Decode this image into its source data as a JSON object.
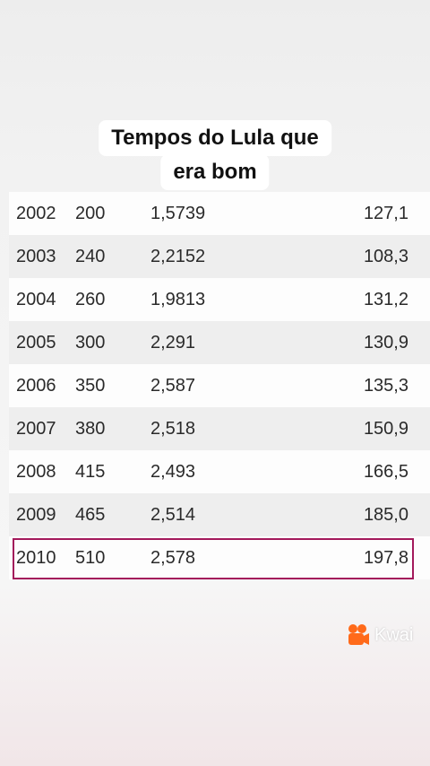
{
  "caption": {
    "lines": [
      "Tempos do Lula que",
      "era bom"
    ]
  },
  "table": {
    "rows": [
      [
        "2002",
        "200",
        "1,5739",
        "127,1"
      ],
      [
        "2003",
        "240",
        "2,2152",
        "108,3"
      ],
      [
        "2004",
        "260",
        "1,9813",
        "131,2"
      ],
      [
        "2005",
        "300",
        "2,291",
        "130,9"
      ],
      [
        "2006",
        "350",
        "2,587",
        "135,3"
      ],
      [
        "2007",
        "380",
        "2,518",
        "150,9"
      ],
      [
        "2008",
        "415",
        "2,493",
        "166,5"
      ],
      [
        "2009",
        "465",
        "2,514",
        "185,0"
      ],
      [
        "2010",
        "510",
        "2,578",
        "197,8"
      ]
    ]
  },
  "watermark": {
    "brand": "Kwai"
  }
}
